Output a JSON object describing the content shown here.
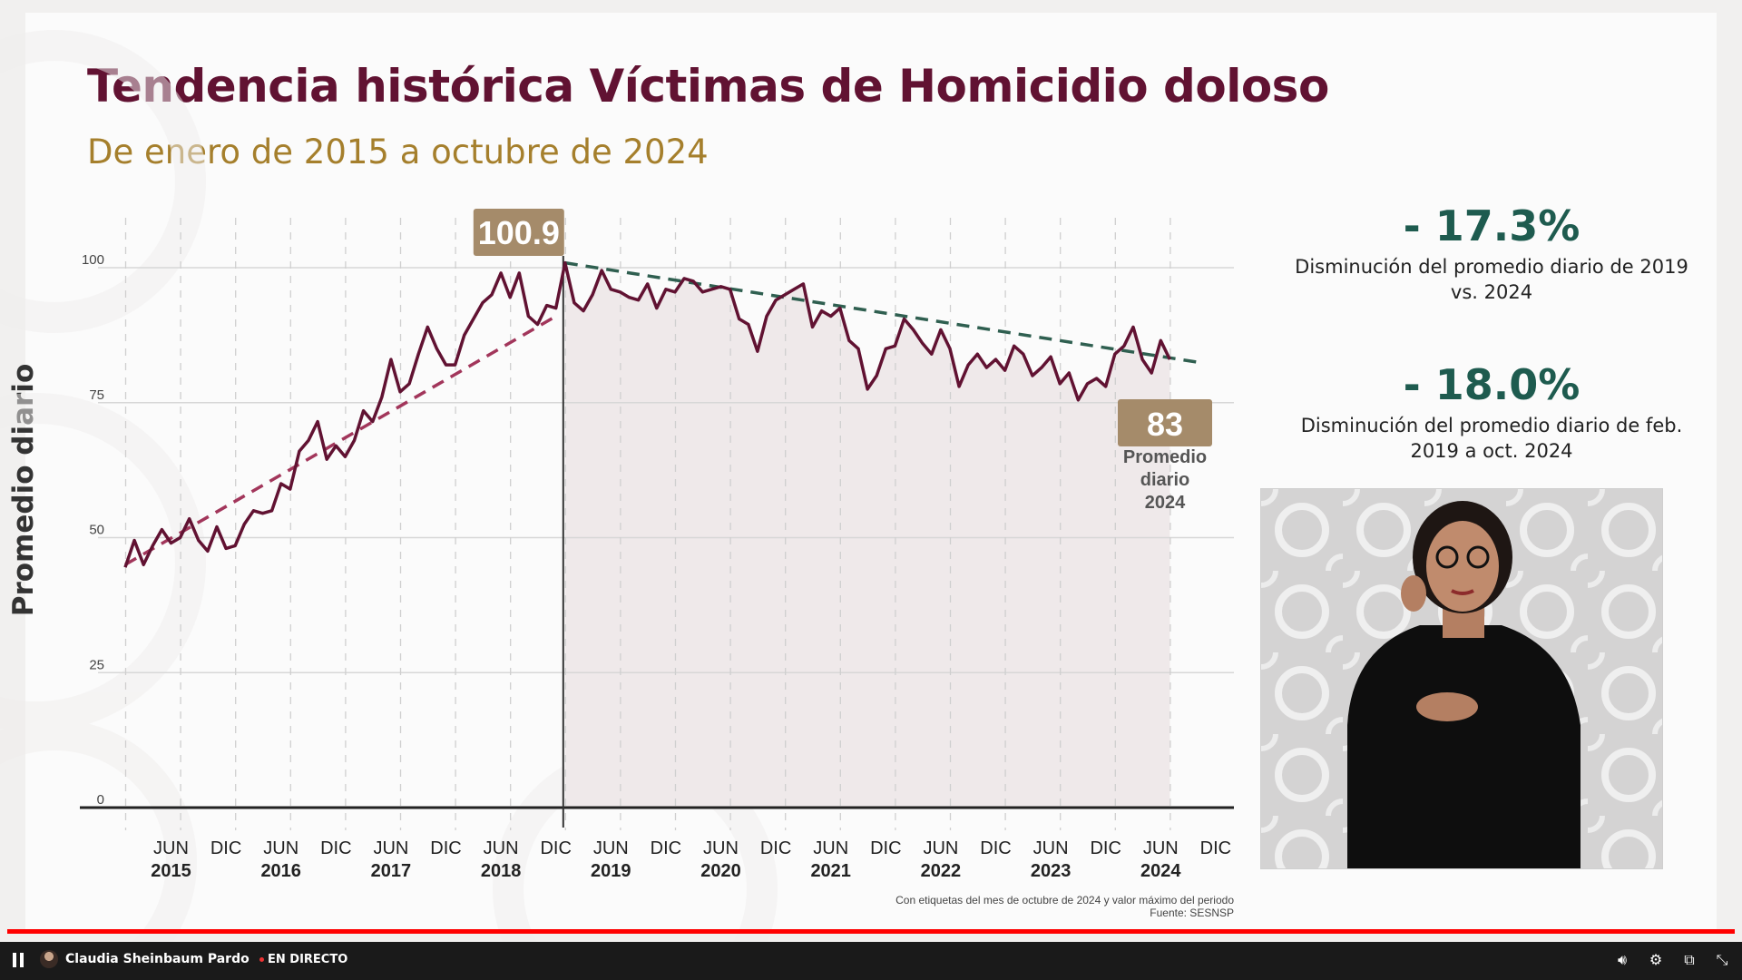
{
  "slide": {
    "title": "Tendencia histórica Víctimas de Homicidio doloso",
    "subtitle": "De enero de 2015 a octubre de 2024",
    "colors": {
      "title": "#611232",
      "subtitle": "#a57f2c",
      "accent_green": "#1e5b4f",
      "badge": "#a58b6a",
      "line": "#611232"
    }
  },
  "stats": [
    {
      "value": "- 17.3%",
      "description": "Disminución del promedio diario de 2019 vs. 2024"
    },
    {
      "value": "- 18.0%",
      "description": "Disminución del promedio diario de feb. 2019 a oct. 2024"
    }
  ],
  "chart_data": {
    "type": "line",
    "ylabel": "Promedio diario",
    "ylim": [
      0,
      100
    ],
    "yticks": [
      0,
      25,
      50,
      75,
      100
    ],
    "x_start": "2015-01",
    "x_end": "2024-10",
    "x_axis_labels": [
      {
        "month": "JUN",
        "year": "2015"
      },
      {
        "month": "DIC",
        "year": ""
      },
      {
        "month": "JUN",
        "year": "2016"
      },
      {
        "month": "DIC",
        "year": ""
      },
      {
        "month": "JUN",
        "year": "2017"
      },
      {
        "month": "DIC",
        "year": ""
      },
      {
        "month": "JUN",
        "year": "2018"
      },
      {
        "month": "DIC",
        "year": ""
      },
      {
        "month": "JUN",
        "year": "2019"
      },
      {
        "month": "DIC",
        "year": ""
      },
      {
        "month": "JUN",
        "year": "2020"
      },
      {
        "month": "DIC",
        "year": ""
      },
      {
        "month": "JUN",
        "year": "2021"
      },
      {
        "month": "DIC",
        "year": ""
      },
      {
        "month": "JUN",
        "year": "2022"
      },
      {
        "month": "DIC",
        "year": ""
      },
      {
        "month": "JUN",
        "year": "2023"
      },
      {
        "month": "DIC",
        "year": ""
      },
      {
        "month": "JUN",
        "year": "2024"
      },
      {
        "month": "DIC",
        "year": ""
      }
    ],
    "series": [
      {
        "values": [
          44.5,
          49.5,
          45,
          48.5,
          51.5,
          49,
          50,
          53.5,
          49.5,
          47.5,
          52,
          48,
          48.5,
          52.5,
          55,
          54.5,
          55,
          60,
          59,
          66,
          68,
          71.5,
          64.5,
          67,
          65,
          68,
          73.5,
          71.5,
          76,
          83,
          77,
          78.5,
          84,
          89,
          85,
          82,
          82,
          87.5,
          90.5,
          93.5,
          95,
          99,
          94.5,
          99,
          91,
          89.5,
          93,
          92.5,
          100.9,
          93.5,
          92,
          95,
          99.5,
          96,
          95.5,
          94.5,
          94,
          97,
          92.5,
          96,
          95.5,
          98,
          97.5,
          95.5,
          96,
          96.5,
          96,
          90.5,
          89.5,
          84.5,
          91,
          94,
          95,
          96,
          97,
          89,
          92,
          91,
          92.5,
          86.5,
          85,
          77.5,
          80,
          85,
          85.5,
          90.5,
          88.5,
          86,
          84,
          88.5,
          85,
          78,
          82,
          84,
          81.5,
          83,
          81,
          85.5,
          84,
          80,
          81.5,
          83.5,
          78.5,
          80.5,
          75.5,
          78.5,
          79.5,
          78,
          84,
          85.5,
          89,
          83,
          80.5,
          86.5,
          83
        ]
      }
    ],
    "trend_lines": [
      {
        "from": {
          "x": "2015-01",
          "y": 45
        },
        "to": {
          "x": "2018-12",
          "y": 91
        },
        "color": "#a2365b"
      },
      {
        "from": {
          "x": "2019-01",
          "y": 100.9
        },
        "to": {
          "x": "2024-10",
          "y": 82.5
        },
        "color": "#2f5f50"
      }
    ],
    "divider_at": "2019-01",
    "annotations": [
      {
        "label": "100.9",
        "at": "2019-01"
      },
      {
        "label": "83",
        "at": "2024-10",
        "caption": [
          "Promedio",
          "diario",
          "2024"
        ]
      }
    ],
    "footnote": [
      "Con etiquetas del mes de octubre de 2024 y valor máximo del periodo",
      "Fuente: SESNSP"
    ]
  },
  "player": {
    "channel_name": "Claudia Sheinbaum Pardo",
    "live_label": "EN DIRECTO",
    "icons": [
      "pause-icon",
      "volume-icon",
      "settings-icon",
      "miniplayer-icon",
      "exit-fullscreen-icon"
    ]
  }
}
